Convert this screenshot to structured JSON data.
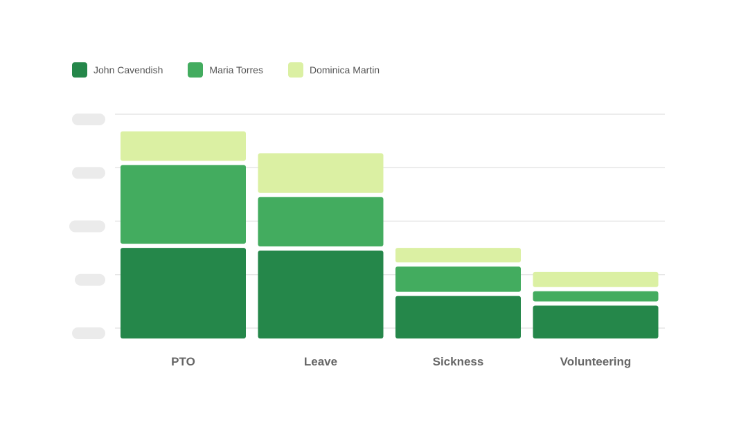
{
  "colors": {
    "john": "#25874a",
    "maria": "#43ac5f",
    "dominica": "#dbf0a3",
    "grid": "#e6e6e6",
    "axis_label": "#666666",
    "tick_placeholder": "#ebebeb"
  },
  "legend": {
    "items": [
      {
        "label": "John Cavendish",
        "color": "#25874a"
      },
      {
        "label": "Maria Torres",
        "color": "#43ac5f"
      },
      {
        "label": "Dominica Martin",
        "color": "#dbf0a3"
      }
    ],
    "placement": "top-left"
  },
  "chart_data": {
    "type": "bar",
    "stacked": true,
    "categories": [
      "PTO",
      "Leave",
      "Sickness",
      "Volunteering"
    ],
    "series": [
      {
        "name": "John Cavendish",
        "color": "#25874a",
        "values": [
          1.5,
          1.45,
          0.6,
          0.42
        ]
      },
      {
        "name": "Maria Torres",
        "color": "#43ac5f",
        "values": [
          1.55,
          1.0,
          0.55,
          0.27
        ]
      },
      {
        "name": "Dominica Martin",
        "color": "#dbf0a3",
        "values": [
          0.63,
          0.82,
          0.35,
          0.36
        ]
      }
    ],
    "ylim": [
      0,
      4.2
    ],
    "yticks": [
      0,
      1,
      2,
      3,
      4
    ],
    "ytick_labels_visible": false,
    "grid": true,
    "title": "",
    "xlabel": "",
    "ylabel": ""
  }
}
